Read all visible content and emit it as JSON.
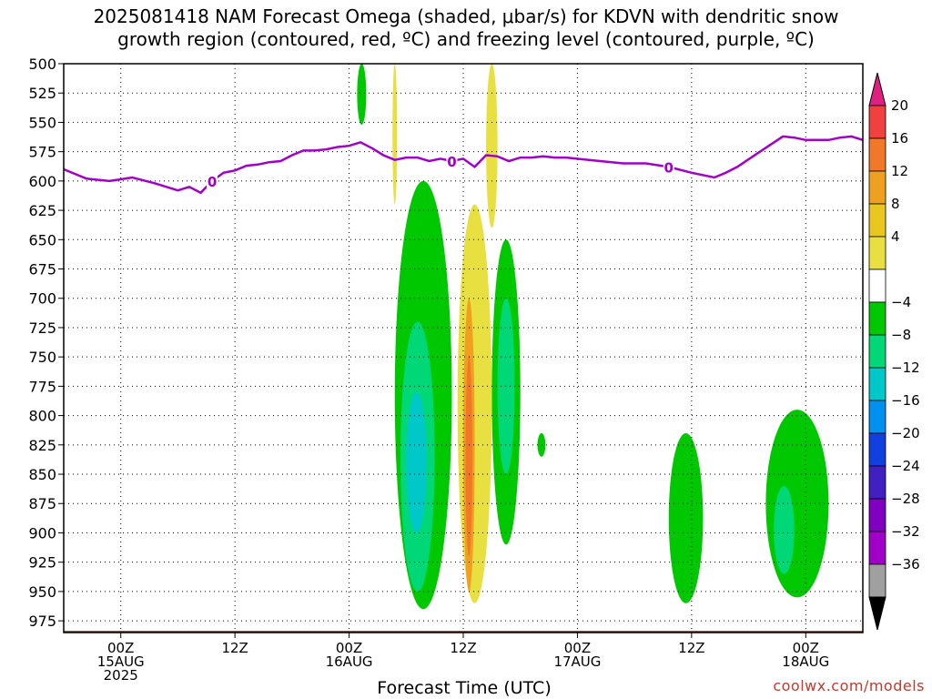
{
  "title": {
    "line1": "2025081418 NAM Forecast Omega (shaded, μbar/s) for KDVN with dendritic snow",
    "line2": "growth region (contoured, red, ºC) and freezing level (contoured, purple, ºC)"
  },
  "credit": "coolwx.com/models",
  "colors": {
    "freezing_line": "#a000c8",
    "ground": "#a0522d",
    "grid": "#000000"
  },
  "chart_data": {
    "type": "heatmap",
    "xlabel": "Forecast Time (UTC)",
    "ylabel": "",
    "x_units": "hours since 2025-08-15 00Z",
    "xlim": [
      -5,
      65
    ],
    "ylim": [
      500,
      985
    ],
    "y_scale": "pressure (hPa)",
    "grid": "dotted",
    "yticks": [
      "500",
      "525",
      "550",
      "575",
      "600",
      "625",
      "650",
      "675",
      "700",
      "725",
      "750",
      "775",
      "800",
      "825",
      "850",
      "875",
      "900",
      "925",
      "950",
      "975"
    ],
    "xticks": [
      {
        "hour": 0,
        "lines": [
          "00Z",
          "15AUG",
          "2025"
        ]
      },
      {
        "hour": 10,
        "lines": [
          "12Z"
        ]
      },
      {
        "hour": 20,
        "lines": [
          "00Z",
          "16AUG"
        ]
      },
      {
        "hour": 30,
        "lines": [
          "12Z"
        ]
      },
      {
        "hour": 40,
        "lines": [
          "00Z",
          "17AUG"
        ]
      },
      {
        "hour": 50,
        "lines": [
          "12Z"
        ]
      },
      {
        "hour": 60,
        "lines": [
          "00Z",
          "18AUG"
        ]
      }
    ],
    "colorbar": {
      "labels": [
        "20",
        "16",
        "12",
        "8",
        "4",
        "−4",
        "−8",
        "−12",
        "−16",
        "−20",
        "−24",
        "−28",
        "−32",
        "−36"
      ],
      "bands": [
        {
          "color": "#e02080"
        },
        {
          "color": "#f04040"
        },
        {
          "color": "#f07828"
        },
        {
          "color": "#f0a020"
        },
        {
          "color": "#e8c820"
        },
        {
          "color": "#e8e040"
        },
        {
          "color": "#ffffff"
        },
        {
          "color": "#00c800"
        },
        {
          "color": "#00d878"
        },
        {
          "color": "#00c8c8"
        },
        {
          "color": "#0090f0"
        },
        {
          "color": "#1040e0"
        },
        {
          "color": "#4020c0"
        },
        {
          "color": "#8000c0"
        },
        {
          "color": "#a000c8"
        },
        {
          "color": "#a0a0a0"
        },
        {
          "color": "#000000"
        }
      ]
    },
    "freezing_level": {
      "label": "0",
      "x": [
        -5,
        -3,
        -1,
        1,
        3,
        5,
        6,
        7,
        8,
        9,
        10,
        11,
        12,
        13,
        14,
        15,
        16,
        17,
        18,
        19,
        20,
        21,
        22,
        23,
        24,
        25,
        26,
        27,
        28,
        29,
        30,
        31,
        32,
        33,
        34,
        35,
        36,
        37,
        38,
        39,
        40,
        42,
        44,
        46,
        48,
        50,
        52,
        53,
        54,
        56,
        58,
        59,
        60,
        61,
        62,
        63,
        64,
        65
      ],
      "p": [
        590,
        598,
        600,
        597,
        602,
        608,
        605,
        610,
        600,
        593,
        591,
        587,
        586,
        584,
        583,
        578,
        574,
        574,
        573,
        571,
        570,
        567,
        572,
        578,
        582,
        580,
        580,
        583,
        581,
        583,
        581,
        588,
        578,
        579,
        583,
        580,
        580,
        579,
        580,
        580,
        581,
        583,
        585,
        585,
        588,
        593,
        597,
        593,
        588,
        575,
        562,
        563,
        565,
        565,
        565,
        563,
        562,
        565
      ],
      "labels_at": [
        8,
        29,
        48
      ]
    },
    "ground_p": 985,
    "omega_regions": [
      {
        "band": "-8",
        "value": -6,
        "t": [
          20.7,
          21.5
        ],
        "p": [
          500,
          552
        ]
      },
      {
        "band": "8",
        "value": 6,
        "t": [
          23.8,
          24.2
        ],
        "p": [
          500,
          620
        ]
      },
      {
        "band": "8",
        "value": 6,
        "t": [
          32.0,
          33.0
        ],
        "p": [
          500,
          640
        ]
      },
      {
        "band": "-8",
        "value": -6,
        "t": [
          24.0,
          29.0
        ],
        "p": [
          600,
          965
        ]
      },
      {
        "band": "-12",
        "value": -10,
        "t": [
          24.5,
          27.5
        ],
        "p": [
          720,
          950
        ]
      },
      {
        "band": "-16",
        "value": -14,
        "t": [
          25.0,
          26.8
        ],
        "p": [
          780,
          900
        ]
      },
      {
        "band": "-8",
        "value": -6,
        "t": [
          32.5,
          35.0
        ],
        "p": [
          650,
          910
        ]
      },
      {
        "band": "-12",
        "value": -10,
        "t": [
          33.0,
          34.5
        ],
        "p": [
          700,
          850
        ]
      },
      {
        "band": "8",
        "value": 6,
        "t": [
          29.5,
          32.5
        ],
        "p": [
          620,
          960
        ]
      },
      {
        "band": "12",
        "value": 10,
        "t": [
          30.0,
          31.0
        ],
        "p": [
          700,
          950
        ]
      },
      {
        "band": "16",
        "value": 14,
        "t": [
          30.2,
          30.8
        ],
        "p": [
          750,
          920
        ]
      },
      {
        "band": "-8",
        "value": -6,
        "t": [
          36.5,
          37.2
        ],
        "p": [
          815,
          835
        ]
      },
      {
        "band": "-8",
        "value": -6,
        "t": [
          48.0,
          51.0
        ],
        "p": [
          815,
          960
        ]
      },
      {
        "band": "-8",
        "value": -6,
        "t": [
          56.5,
          62.0
        ],
        "p": [
          795,
          955
        ]
      },
      {
        "band": "-12",
        "value": -10,
        "t": [
          57.2,
          59.0
        ],
        "p": [
          860,
          935
        ]
      }
    ]
  }
}
